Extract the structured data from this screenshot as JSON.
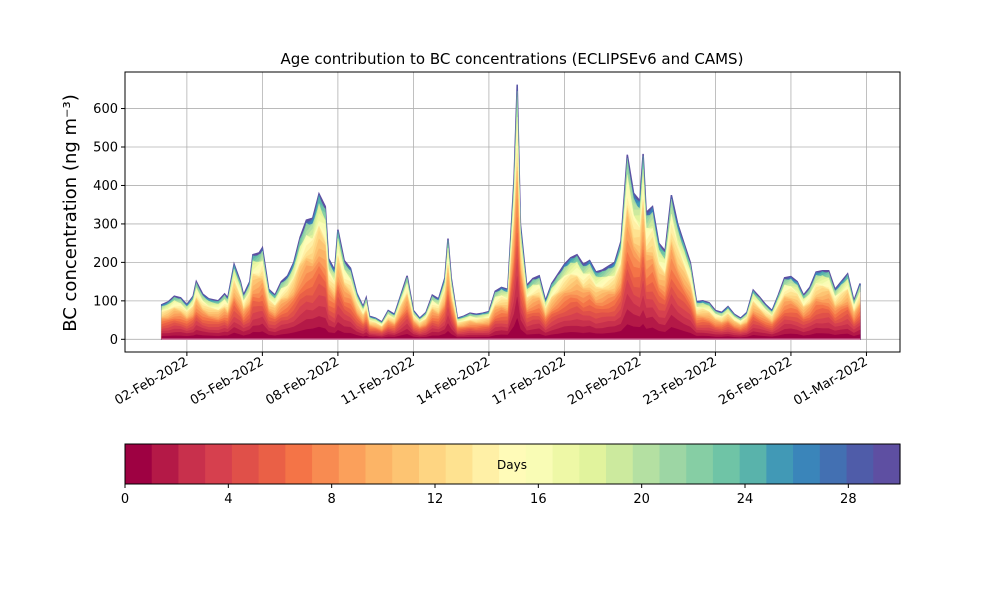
{
  "chart_data": {
    "type": "area",
    "subtype": "stacked",
    "title": "Age contribution to BC concentrations (ECLIPSEv6 and CAMS)",
    "ylabel": "BC concentration (ng m⁻³)",
    "xlabel": "",
    "x_start": "2022-02-01",
    "x_end": "2022-03-01",
    "xlim": [
      "2022-01-30T13:00",
      "2022-03-02T08:00"
    ],
    "ylim": [
      -33,
      695
    ],
    "xticks": [
      "02-Feb-2022",
      "05-Feb-2022",
      "08-Feb-2022",
      "11-Feb-2022",
      "14-Feb-2022",
      "17-Feb-2022",
      "20-Feb-2022",
      "23-Feb-2022",
      "26-Feb-2022",
      "01-Mar-2022"
    ],
    "yticks": [
      0,
      100,
      200,
      300,
      400,
      500,
      600
    ],
    "grid": true,
    "total_profile": [
      [
        "2022-02-01T00:00",
        90
      ],
      [
        "2022-02-01T06:00",
        97
      ],
      [
        "2022-02-01T12:00",
        112
      ],
      [
        "2022-02-01T18:00",
        108
      ],
      [
        "2022-02-02T00:00",
        90
      ],
      [
        "2022-02-02T06:00",
        112
      ],
      [
        "2022-02-02T09:00",
        150
      ],
      [
        "2022-02-02T15:00",
        118
      ],
      [
        "2022-02-02T21:00",
        105
      ],
      [
        "2022-02-03T06:00",
        100
      ],
      [
        "2022-02-03T12:00",
        118
      ],
      [
        "2022-02-03T15:00",
        108
      ],
      [
        "2022-02-03T21:00",
        195
      ],
      [
        "2022-02-04T03:00",
        150
      ],
      [
        "2022-02-04T06:00",
        115
      ],
      [
        "2022-02-04T12:00",
        150
      ],
      [
        "2022-02-04T15:00",
        220
      ],
      [
        "2022-02-04T21:00",
        225
      ],
      [
        "2022-02-05T00:00",
        238
      ],
      [
        "2022-02-05T06:00",
        130
      ],
      [
        "2022-02-05T12:00",
        115
      ],
      [
        "2022-02-05T18:00",
        150
      ],
      [
        "2022-02-06T00:00",
        165
      ],
      [
        "2022-02-06T06:00",
        200
      ],
      [
        "2022-02-06T12:00",
        265
      ],
      [
        "2022-02-06T18:00",
        310
      ],
      [
        "2022-02-07T00:00",
        315
      ],
      [
        "2022-02-07T06:00",
        378
      ],
      [
        "2022-02-07T12:00",
        345
      ],
      [
        "2022-02-07T15:00",
        210
      ],
      [
        "2022-02-07T21:00",
        180
      ],
      [
        "2022-02-08T00:00",
        285
      ],
      [
        "2022-02-08T06:00",
        205
      ],
      [
        "2022-02-08T12:00",
        185
      ],
      [
        "2022-02-08T18:00",
        120
      ],
      [
        "2022-02-09T00:00",
        85
      ],
      [
        "2022-02-09T03:00",
        108
      ],
      [
        "2022-02-09T06:00",
        60
      ],
      [
        "2022-02-09T12:00",
        55
      ],
      [
        "2022-02-09T18:00",
        45
      ],
      [
        "2022-02-10T00:00",
        75
      ],
      [
        "2022-02-10T06:00",
        65
      ],
      [
        "2022-02-10T12:00",
        115
      ],
      [
        "2022-02-10T18:00",
        165
      ],
      [
        "2022-02-11T00:00",
        75
      ],
      [
        "2022-02-11T06:00",
        55
      ],
      [
        "2022-02-11T12:00",
        70
      ],
      [
        "2022-02-11T18:00",
        115
      ],
      [
        "2022-02-12T00:00",
        105
      ],
      [
        "2022-02-12T06:00",
        160
      ],
      [
        "2022-02-12T09:00",
        262
      ],
      [
        "2022-02-12T12:00",
        160
      ],
      [
        "2022-02-12T18:00",
        55
      ],
      [
        "2022-02-13T00:00",
        60
      ],
      [
        "2022-02-13T06:00",
        68
      ],
      [
        "2022-02-13T12:00",
        65
      ],
      [
        "2022-02-13T18:00",
        68
      ],
      [
        "2022-02-14T00:00",
        72
      ],
      [
        "2022-02-14T06:00",
        125
      ],
      [
        "2022-02-14T12:00",
        135
      ],
      [
        "2022-02-14T18:00",
        130
      ],
      [
        "2022-02-15T00:00",
        420
      ],
      [
        "2022-02-15T03:00",
        662
      ],
      [
        "2022-02-15T06:00",
        300
      ],
      [
        "2022-02-15T12:00",
        140
      ],
      [
        "2022-02-15T18:00",
        158
      ],
      [
        "2022-02-16T00:00",
        165
      ],
      [
        "2022-02-16T06:00",
        100
      ],
      [
        "2022-02-16T12:00",
        145
      ],
      [
        "2022-02-16T18:00",
        170
      ],
      [
        "2022-02-17T00:00",
        195
      ],
      [
        "2022-02-17T06:00",
        212
      ],
      [
        "2022-02-17T12:00",
        220
      ],
      [
        "2022-02-17T18:00",
        195
      ],
      [
        "2022-02-18T00:00",
        205
      ],
      [
        "2022-02-18T06:00",
        175
      ],
      [
        "2022-02-18T12:00",
        180
      ],
      [
        "2022-02-18T18:00",
        190
      ],
      [
        "2022-02-19T00:00",
        200
      ],
      [
        "2022-02-19T06:00",
        255
      ],
      [
        "2022-02-19T12:00",
        480
      ],
      [
        "2022-02-19T18:00",
        380
      ],
      [
        "2022-02-20T00:00",
        360
      ],
      [
        "2022-02-20T03:00",
        482
      ],
      [
        "2022-02-20T06:00",
        330
      ],
      [
        "2022-02-20T12:00",
        345
      ],
      [
        "2022-02-20T18:00",
        250
      ],
      [
        "2022-02-21T00:00",
        230
      ],
      [
        "2022-02-21T06:00",
        375
      ],
      [
        "2022-02-21T12:00",
        300
      ],
      [
        "2022-02-21T18:00",
        250
      ],
      [
        "2022-02-22T00:00",
        200
      ],
      [
        "2022-02-22T06:00",
        98
      ],
      [
        "2022-02-22T12:00",
        100
      ],
      [
        "2022-02-22T18:00",
        95
      ],
      [
        "2022-02-23T00:00",
        75
      ],
      [
        "2022-02-23T06:00",
        70
      ],
      [
        "2022-02-23T12:00",
        85
      ],
      [
        "2022-02-23T18:00",
        65
      ],
      [
        "2022-02-24T00:00",
        55
      ],
      [
        "2022-02-24T06:00",
        70
      ],
      [
        "2022-02-24T12:00",
        128
      ],
      [
        "2022-02-24T18:00",
        110
      ],
      [
        "2022-02-25T00:00",
        90
      ],
      [
        "2022-02-25T06:00",
        75
      ],
      [
        "2022-02-25T12:00",
        115
      ],
      [
        "2022-02-25T18:00",
        160
      ],
      [
        "2022-02-26T00:00",
        163
      ],
      [
        "2022-02-26T06:00",
        150
      ],
      [
        "2022-02-26T12:00",
        115
      ],
      [
        "2022-02-26T18:00",
        135
      ],
      [
        "2022-02-27T00:00",
        175
      ],
      [
        "2022-02-27T06:00",
        178
      ],
      [
        "2022-02-27T12:00",
        178
      ],
      [
        "2022-02-27T18:00",
        130
      ],
      [
        "2022-02-28T00:00",
        150
      ],
      [
        "2022-02-28T06:00",
        170
      ],
      [
        "2022-02-28T12:00",
        100
      ],
      [
        "2022-02-28T18:00",
        145
      ]
    ],
    "colorbar": {
      "label": "Days",
      "range": [
        0,
        30
      ],
      "ticks": [
        0,
        4,
        8,
        12,
        16,
        20,
        24,
        28
      ],
      "colors": [
        "#9e0142",
        "#b41947",
        "#c8304c",
        "#d6404e",
        "#e05049",
        "#ea6046",
        "#f47447",
        "#f88b51",
        "#fba05b",
        "#fcb466",
        "#fdc472",
        "#fed582",
        "#fee290",
        "#fff0a6",
        "#fffbb8",
        "#f9fcb5",
        "#eef8a6",
        "#e1f39d",
        "#ccea9e",
        "#b4e0a2",
        "#9dd6a4",
        "#86cea4",
        "#6fc4a6",
        "#59b3ab",
        "#4199b6",
        "#3a85ba",
        "#4370b2",
        "#4f5ca9",
        "#5e4fa2"
      ]
    }
  }
}
